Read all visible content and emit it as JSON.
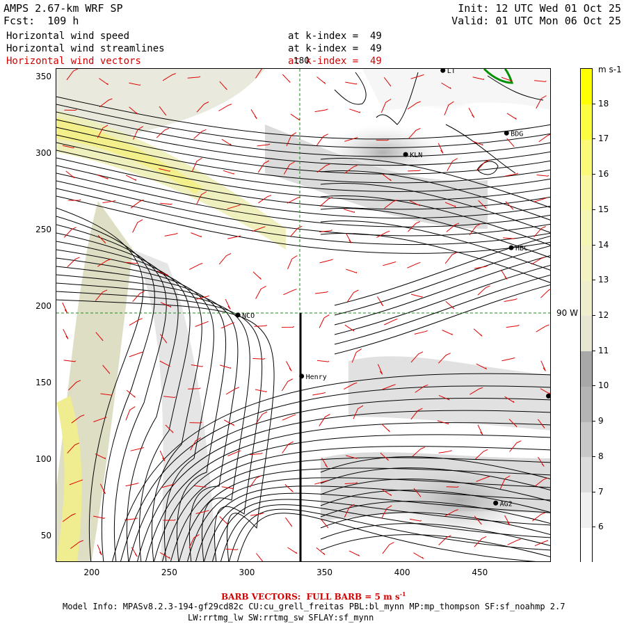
{
  "header": {
    "model_title": "AMPS 2.67-km WRF SP",
    "forecast": "Fcst:  109 h",
    "init": "Init: 12 UTC Wed 01 Oct 25",
    "valid": "Valid: 01 UTC Mon 06 Oct 25",
    "fields": [
      {
        "name": "Horizontal wind speed",
        "level": "at k-index =  49",
        "color": "#000000"
      },
      {
        "name": "Horizontal wind streamlines",
        "level": "at k-index =  49",
        "color": "#000000"
      },
      {
        "name": "Horizontal wind vectors",
        "level": "at k-index =  49",
        "color": "#d40000"
      }
    ]
  },
  "map": {
    "x_ticks": [
      200,
      250,
      300,
      350,
      400,
      450
    ],
    "y_ticks": [
      50,
      100,
      150,
      200,
      250,
      300,
      350
    ],
    "x_range": [
      177,
      496
    ],
    "y_range": [
      33,
      356
    ],
    "meridian_label": "180",
    "parallel_label": "90 W",
    "stations": [
      {
        "name": "NCO",
        "x": 294,
        "y": 195
      },
      {
        "name": "Henry",
        "x": 335,
        "y": 155
      },
      {
        "name": "KLN",
        "x": 402,
        "y": 300
      },
      {
        "name": "BDG",
        "x": 467,
        "y": 314
      },
      {
        "name": "HBC",
        "x": 470,
        "y": 239
      },
      {
        "name": "AG2",
        "x": 460,
        "y": 72
      },
      {
        "name": "LT",
        "x": 426,
        "y": 355
      },
      {
        "name": "",
        "x": 494,
        "y": 142
      }
    ]
  },
  "colorbar": {
    "unit": "m s-1",
    "levels": [
      6,
      7,
      8,
      9,
      10,
      11,
      12,
      13,
      14,
      15,
      16,
      17,
      18
    ],
    "colors": [
      "#ffffff",
      "#f0f0f0",
      "#dcdcdc",
      "#c8c8c8",
      "#b4b4b4",
      "#a8a8a8",
      "#e6e6d2",
      "#eeeecc",
      "#f2f2c2",
      "#f6f6b4",
      "#f8f8a0",
      "#fafa78",
      "#fcfc40",
      "#ffff00"
    ]
  },
  "footer": {
    "barb_note": "BARB VECTORS:  FULL BARB = 5 m s",
    "barb_sup": "-1",
    "model_info": "Model Info: MPASv8.2.3-194-gf29cd82c CU:cu_grell_freitas PBL:bl_mynn MP:mp_thompson SF:sf_noahmp 2.7",
    "model_info2": "LW:rrtmg_lw SW:rrtmg_sw SFLAY:sf_mynn"
  }
}
